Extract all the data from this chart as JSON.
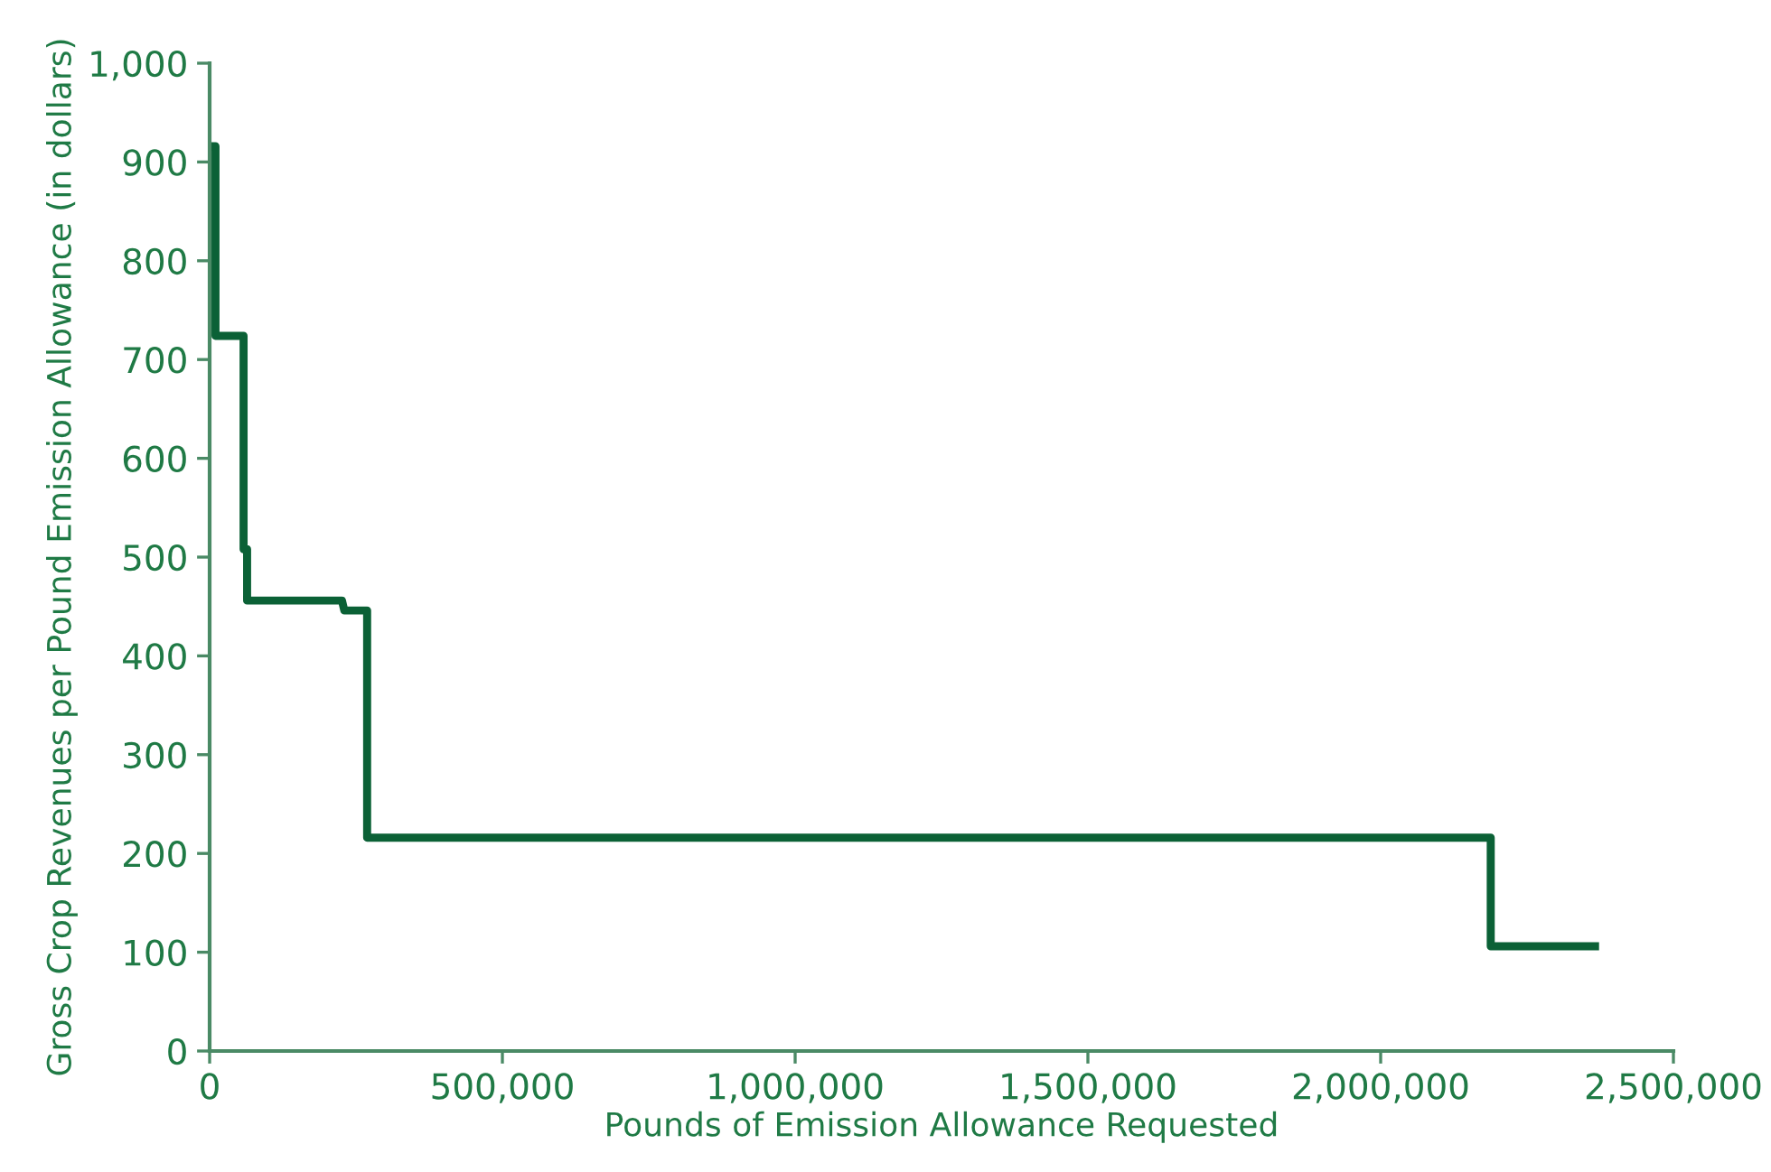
{
  "chart_data": {
    "type": "line",
    "xlabel": "Pounds of Emission Allowance Requested",
    "ylabel": "Gross Crop Revenues per Pound Emission Allowance (in dollars)",
    "series": [
      {
        "color": "#0b6136",
        "x": [
          1000,
          10000,
          10000,
          58000,
          58000,
          64000,
          64000,
          226000,
          230000,
          269000,
          269000,
          2188000,
          2188000,
          2373000
        ],
        "values": [
          916,
          916,
          724,
          724,
          508,
          508,
          456,
          456,
          446,
          446,
          216,
          216,
          106,
          106
        ]
      }
    ],
    "xlim": [
      0,
      2500000
    ],
    "xticks": [
      0,
      {
        "value": 500000,
        "label": "500,000"
      },
      {
        "value": 1000000,
        "label": "1,000,000"
      },
      {
        "value": 1500000,
        "label": "1,500,000"
      },
      {
        "value": 2000000,
        "label": "2,000,000"
      },
      {
        "value": 2500000,
        "label": "2,500,000"
      }
    ],
    "ylim": [
      0,
      1000
    ],
    "yticks": [
      0,
      100,
      200,
      300,
      400,
      500,
      600,
      700,
      800,
      900,
      {
        "value": 1000,
        "label": "1,000"
      }
    ],
    "grid": false,
    "marker": "none",
    "line_style": "solid"
  }
}
